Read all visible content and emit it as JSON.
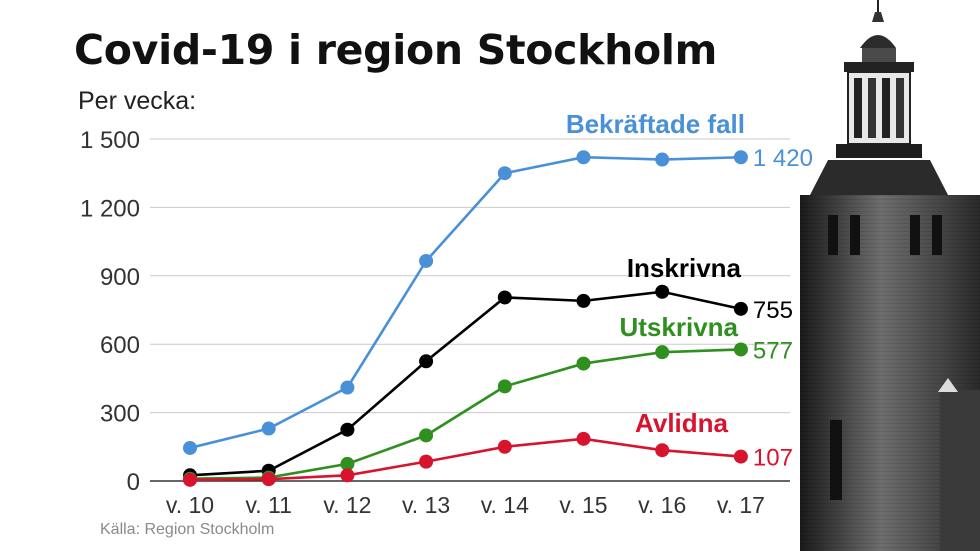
{
  "title": "Covid-19 i region Stockholm",
  "subtitle": "Per vecka:",
  "source": "Källa: Region Stockholm",
  "chart_data": {
    "type": "line",
    "title": "Covid-19 i region Stockholm",
    "ylabel": "Per vecka:",
    "xlabel": "",
    "categories": [
      "v. 10",
      "v. 11",
      "v. 12",
      "v. 13",
      "v. 14",
      "v. 15",
      "v. 16",
      "v. 17"
    ],
    "y_tick_labels": [
      "0",
      "300",
      "600",
      "900",
      "1 200",
      "1 500"
    ],
    "y_ticks": [
      0,
      300,
      600,
      900,
      1200,
      1500
    ],
    "ylim": [
      0,
      1500
    ],
    "grid": "horizontal",
    "series": [
      {
        "name": "Bekräftade fall",
        "color": "#4a90d9",
        "values": [
          145,
          230,
          410,
          965,
          1350,
          1420,
          1410,
          1420
        ],
        "end_label": "1 420"
      },
      {
        "name": "Inskrivna",
        "color": "#000000",
        "values": [
          25,
          45,
          225,
          525,
          805,
          790,
          830,
          755
        ],
        "end_label": "755"
      },
      {
        "name": "Utskrivna",
        "color": "#2f8f1f",
        "values": [
          10,
          15,
          75,
          200,
          415,
          515,
          565,
          577
        ],
        "end_label": "577"
      },
      {
        "name": "Avlidna",
        "color": "#d7132e",
        "values": [
          5,
          8,
          25,
          85,
          150,
          185,
          135,
          107
        ],
        "end_label": "107"
      }
    ]
  }
}
